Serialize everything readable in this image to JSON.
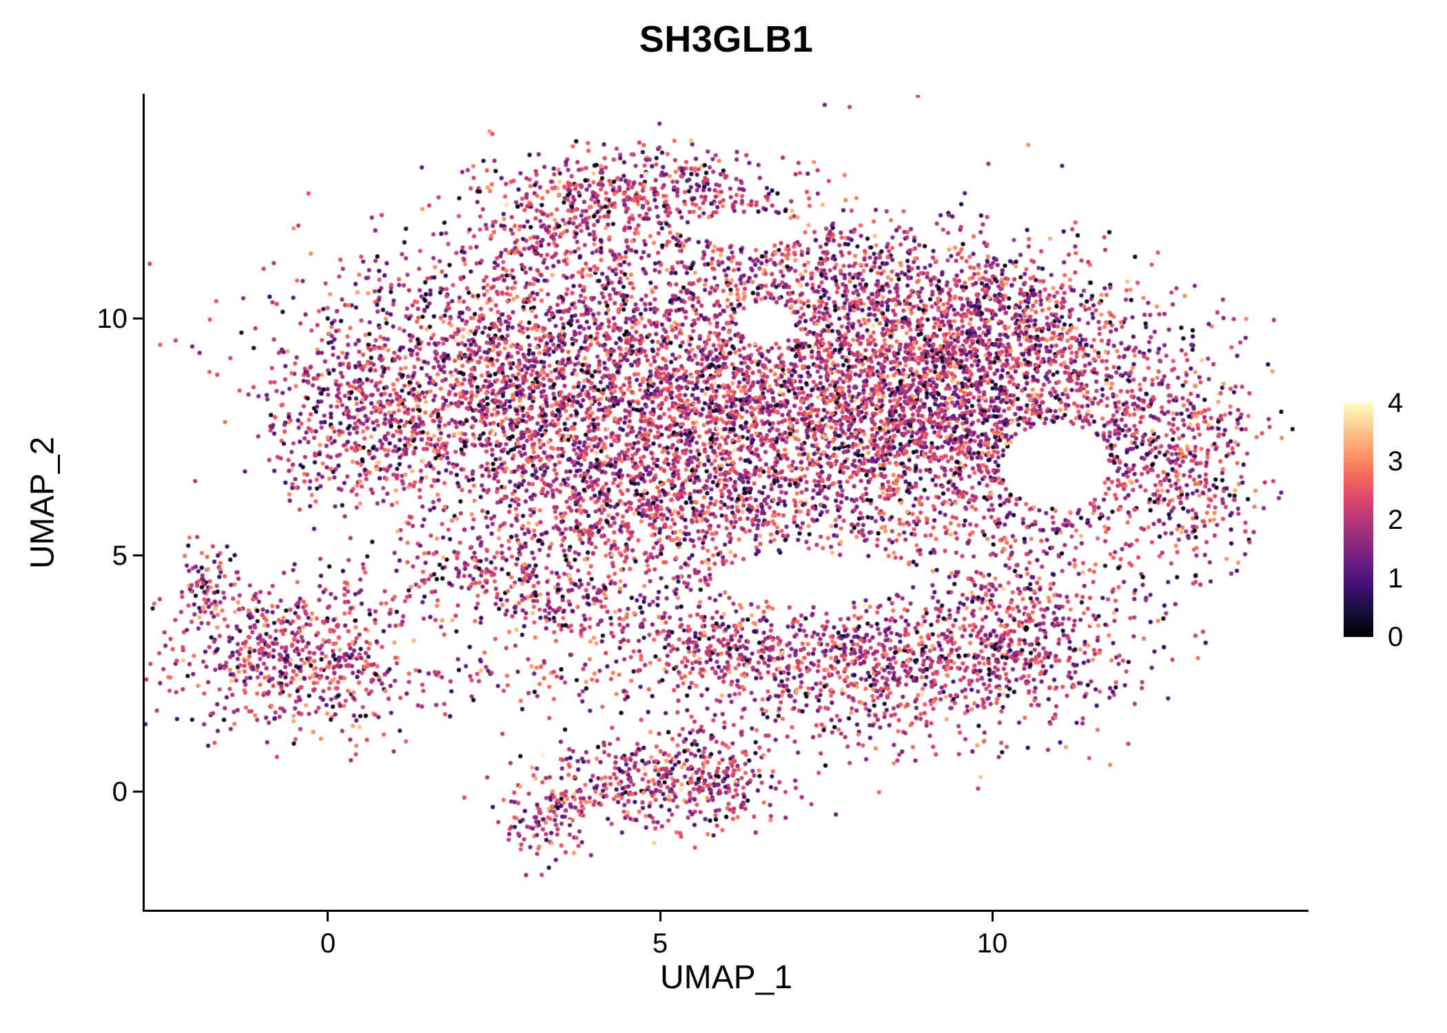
{
  "chart_data": {
    "type": "scatter",
    "title": "SH3GLB1",
    "xlabel": "UMAP_1",
    "ylabel": "UMAP_2",
    "x_ticks": [
      0,
      5,
      10
    ],
    "y_ticks": [
      10,
      5,
      0
    ],
    "xlim": [
      -2.76,
      14.75
    ],
    "ylim": [
      -2.48,
      14.72
    ],
    "grid": false,
    "legend": {
      "position": "right",
      "ticks": [
        4,
        3,
        2,
        1,
        0
      ]
    },
    "colormap": {
      "name": "magma",
      "domain": [
        0,
        4
      ],
      "stops": [
        {
          "t": 0.0,
          "color": "#000004"
        },
        {
          "t": 0.1,
          "color": "#140E36"
        },
        {
          "t": 0.2,
          "color": "#3B0F70"
        },
        {
          "t": 0.3,
          "color": "#641A80"
        },
        {
          "t": 0.4,
          "color": "#8C2981"
        },
        {
          "t": 0.5,
          "color": "#B73779"
        },
        {
          "t": 0.6,
          "color": "#DE4968"
        },
        {
          "t": 0.7,
          "color": "#F7705C"
        },
        {
          "t": 0.8,
          "color": "#FE9F6D"
        },
        {
          "t": 0.9,
          "color": "#FECF92"
        },
        {
          "t": 1.0,
          "color": "#FCFDBF"
        }
      ]
    },
    "point_radius_px": 3.1,
    "seed": 20240607,
    "expression_mixture": [
      {
        "weight": 0.7,
        "mean": 2.05,
        "sd": 0.55
      },
      {
        "weight": 0.14,
        "mean": 1.0,
        "sd": 0.5
      },
      {
        "weight": 0.1,
        "mean": 2.9,
        "sd": 0.35
      },
      {
        "weight": 0.06,
        "mean": 0.2,
        "sd": 0.25
      }
    ],
    "clusters": [
      {
        "name": "main-left",
        "cx": 2.6,
        "cy": 8.6,
        "sx": 1.5,
        "sy": 1.4,
        "n": 1700
      },
      {
        "name": "main-center",
        "cx": 5.8,
        "cy": 8.3,
        "sx": 1.7,
        "sy": 1.7,
        "n": 2100
      },
      {
        "name": "main-right",
        "cx": 8.8,
        "cy": 8.2,
        "sx": 1.5,
        "sy": 1.5,
        "n": 2100
      },
      {
        "name": "main-far-right",
        "cx": 11.3,
        "cy": 7.3,
        "sx": 1.2,
        "sy": 1.4,
        "n": 800
      },
      {
        "name": "right-tip",
        "cx": 12.9,
        "cy": 7.0,
        "sx": 0.55,
        "sy": 1.1,
        "n": 300
      },
      {
        "name": "top-protrusion",
        "cx": 4.8,
        "cy": 12.7,
        "sx": 1.1,
        "sy": 0.5,
        "n": 420
      },
      {
        "name": "top-left-neck",
        "cx": 3.6,
        "cy": 11.6,
        "sx": 0.7,
        "sy": 0.7,
        "n": 220
      },
      {
        "name": "top-ridge",
        "cx": 7.6,
        "cy": 10.9,
        "sx": 1.7,
        "sy": 0.7,
        "n": 480
      },
      {
        "name": "left-tip",
        "cx": 0.4,
        "cy": 7.9,
        "sx": 0.75,
        "sy": 1.0,
        "n": 380
      },
      {
        "name": "lower-middle",
        "cx": 4.6,
        "cy": 5.9,
        "sx": 1.4,
        "sy": 0.8,
        "n": 600
      },
      {
        "name": "upper-right-dense",
        "cx": 10.2,
        "cy": 9.6,
        "sx": 1.0,
        "sy": 0.8,
        "n": 500
      },
      {
        "name": "diffuse-halo",
        "cx": 6.5,
        "cy": 8.0,
        "sx": 3.3,
        "sy": 2.3,
        "n": 450
      },
      {
        "name": "left-island",
        "cx": -0.5,
        "cy": 2.9,
        "sx": 0.95,
        "sy": 0.8,
        "n": 650
      },
      {
        "name": "left-island-tail",
        "cx": -1.8,
        "cy": 4.4,
        "sx": 0.22,
        "sy": 0.45,
        "n": 70
      },
      {
        "name": "bottom-island",
        "cx": 4.8,
        "cy": 0.2,
        "sx": 0.95,
        "sy": 0.5,
        "n": 350
      },
      {
        "name": "bottom-tail",
        "cx": 3.3,
        "cy": -0.6,
        "sx": 0.35,
        "sy": 0.45,
        "n": 110
      },
      {
        "name": "bottom-right-lobe",
        "cx": 5.9,
        "cy": 0.4,
        "sx": 0.5,
        "sy": 0.55,
        "n": 140
      },
      {
        "name": "band-center",
        "cx": 8.3,
        "cy": 2.6,
        "sx": 1.6,
        "sy": 0.85,
        "n": 850
      },
      {
        "name": "band-right",
        "cx": 10.3,
        "cy": 3.3,
        "sx": 0.95,
        "sy": 0.85,
        "n": 450
      },
      {
        "name": "band-left",
        "cx": 5.9,
        "cy": 3.0,
        "sx": 1.0,
        "sy": 0.55,
        "n": 280
      },
      {
        "name": "strand-diagonal",
        "cx": 3.6,
        "cy": 4.0,
        "sx": 1.0,
        "sy": 0.45,
        "n": 200
      },
      {
        "name": "strand-upper",
        "cx": 2.4,
        "cy": 4.7,
        "sx": 0.8,
        "sy": 0.4,
        "n": 120
      },
      {
        "name": "strand-lower",
        "cx": 2.6,
        "cy": 2.4,
        "sx": 1.1,
        "sy": 0.35,
        "n": 90
      }
    ],
    "voids": [
      {
        "cx": 10.95,
        "cy": 6.9,
        "rx": 0.8,
        "ry": 0.9
      },
      {
        "cx": 6.6,
        "cy": 9.9,
        "rx": 0.45,
        "ry": 0.45
      },
      {
        "cx": 7.3,
        "cy": 4.5,
        "rx": 1.5,
        "ry": 0.5
      },
      {
        "cx": 6.3,
        "cy": 11.9,
        "rx": 0.8,
        "ry": 0.35
      }
    ]
  }
}
